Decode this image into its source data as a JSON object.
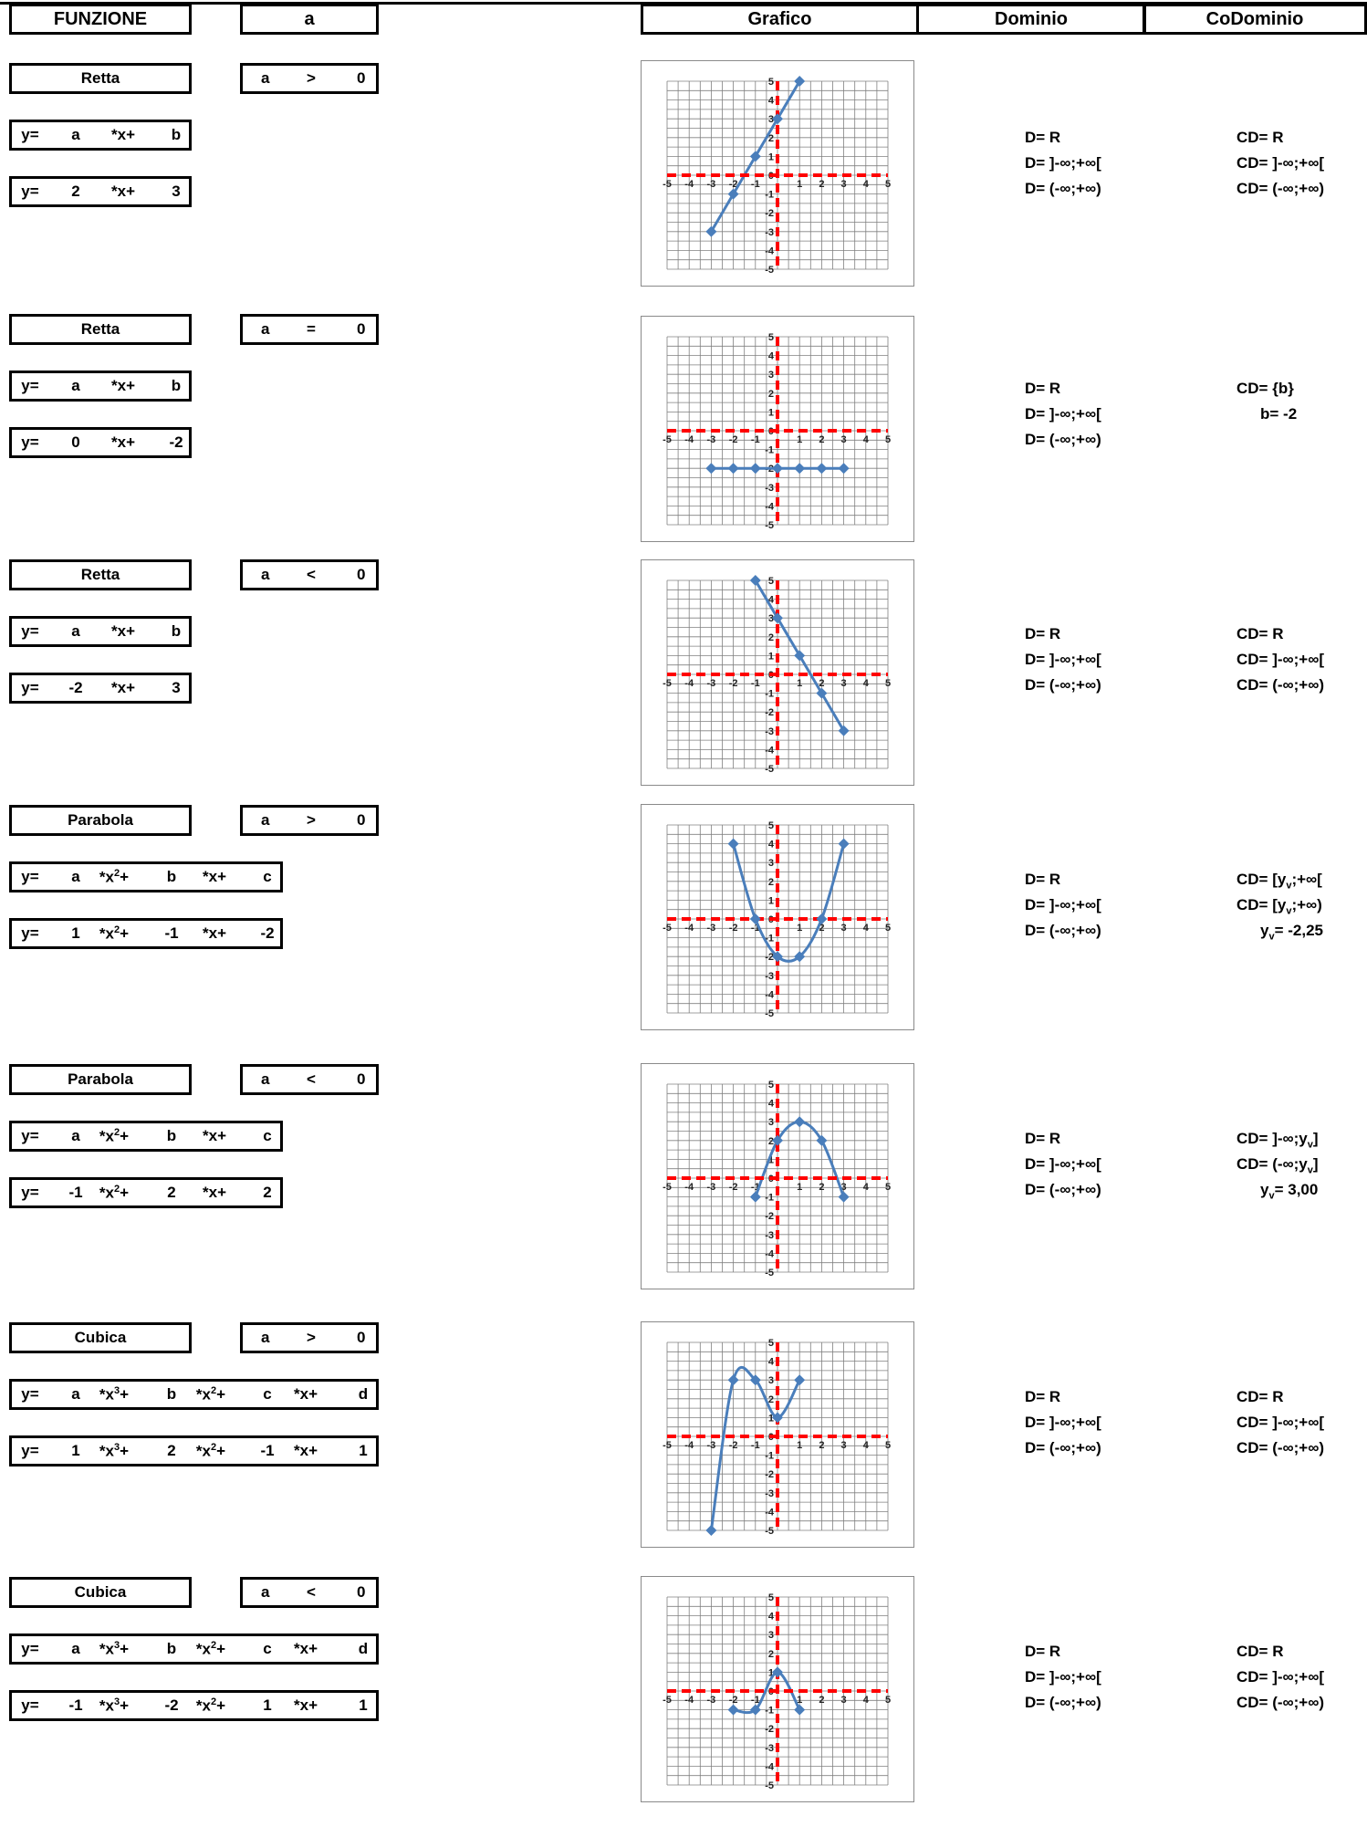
{
  "header": {
    "funzione": "FUNZIONE",
    "a": "a",
    "grafico": "Grafico",
    "dominio": "Dominio",
    "codominio": "CoDominio"
  },
  "sections": [
    {
      "name": "Retta",
      "cond": [
        "a",
        ">",
        "0"
      ],
      "type": "linear",
      "coef": [
        "2",
        "3"
      ],
      "dom": [
        "D= R",
        "D= ]-∞;+∞[",
        "D= (-∞;+∞)"
      ],
      "cod": [
        "CD= R",
        "CD= ]-∞;+∞[",
        "CD= (-∞;+∞)"
      ]
    },
    {
      "name": "Retta",
      "cond": [
        "a",
        "=",
        "0"
      ],
      "type": "linear",
      "coef": [
        "0",
        "-2"
      ],
      "dom": [
        "D= R",
        "D= ]-∞;+∞[",
        "D= (-∞;+∞)"
      ],
      "cod": [
        "CD= {b}",
        "b= -2",
        ""
      ]
    },
    {
      "name": "Retta",
      "cond": [
        "a",
        "<",
        "0"
      ],
      "type": "linear",
      "coef": [
        "-2",
        "3"
      ],
      "dom": [
        "D= R",
        "D= ]-∞;+∞[",
        "D= (-∞;+∞)"
      ],
      "cod": [
        "CD= R",
        "CD= ]-∞;+∞[",
        "CD= (-∞;+∞)"
      ]
    },
    {
      "name": "Parabola",
      "cond": [
        "a",
        ">",
        "0"
      ],
      "type": "quadratic",
      "coef": [
        "1",
        "-1",
        "-2"
      ],
      "dom": [
        "D= R",
        "D= ]-∞;+∞[",
        "D= (-∞;+∞)"
      ],
      "cod": [
        "CD= [yv;+∞[",
        "CD= [yv;+∞)",
        "yv= -2,25"
      ]
    },
    {
      "name": "Parabola",
      "cond": [
        "a",
        "<",
        "0"
      ],
      "type": "quadratic",
      "coef": [
        "-1",
        "2",
        "2"
      ],
      "dom": [
        "D= R",
        "D= ]-∞;+∞[",
        "D= (-∞;+∞)"
      ],
      "cod": [
        "CD= ]-∞;yv]",
        "CD= (-∞;yv]",
        "yv= 3,00"
      ]
    },
    {
      "name": "Cubica",
      "cond": [
        "a",
        ">",
        "0"
      ],
      "type": "cubic",
      "coef": [
        "1",
        "2",
        "-1",
        "1"
      ],
      "dom": [
        "D= R",
        "D= ]-∞;+∞[",
        "D= (-∞;+∞)"
      ],
      "cod": [
        "CD= R",
        "CD= ]-∞;+∞[",
        "CD= (-∞;+∞)"
      ]
    },
    {
      "name": "Cubica",
      "cond": [
        "a",
        "<",
        "0"
      ],
      "type": "cubic",
      "coef": [
        "-1",
        "-2",
        "1",
        "1"
      ],
      "dom": [
        "D= R",
        "D= ]-∞;+∞[",
        "D= (-∞;+∞)"
      ],
      "cod": [
        "CD= R",
        "CD= ]-∞;+∞[",
        "CD= (-∞;+∞)"
      ]
    }
  ],
  "generic": {
    "linear": [
      "y=",
      "a",
      "*x+",
      "b"
    ],
    "quadratic": [
      "y=",
      "a",
      "*x2+",
      "b",
      "*x+",
      "c"
    ],
    "cubic": [
      "y=",
      "a",
      "*x3+",
      "b",
      "*x2+",
      "c",
      "*x+",
      "d"
    ]
  },
  "chart_data": [
    {
      "type": "line",
      "title": "",
      "x": [
        -3,
        -2,
        -1,
        0,
        1
      ],
      "y": [
        -3,
        -1,
        1,
        3,
        5
      ],
      "xlim": [
        -5,
        5
      ],
      "ylim": [
        -5,
        5
      ],
      "grid": true
    },
    {
      "type": "line",
      "title": "",
      "x": [
        -3,
        -2,
        -1,
        0,
        1,
        2,
        3
      ],
      "y": [
        -2,
        -2,
        -2,
        -2,
        -2,
        -2,
        -2
      ],
      "xlim": [
        -5,
        5
      ],
      "ylim": [
        -5,
        5
      ],
      "grid": true
    },
    {
      "type": "line",
      "title": "",
      "x": [
        -1,
        0,
        1,
        2,
        3
      ],
      "y": [
        5,
        3,
        1,
        -1,
        -3
      ],
      "xlim": [
        -5,
        5
      ],
      "ylim": [
        -5,
        5
      ],
      "grid": true
    },
    {
      "type": "line",
      "title": "",
      "x": [
        -2,
        -1,
        0,
        1,
        2,
        3
      ],
      "y": [
        4,
        0,
        -2,
        -2,
        0,
        4
      ],
      "xlim": [
        -5,
        5
      ],
      "ylim": [
        -5,
        5
      ],
      "grid": true
    },
    {
      "type": "line",
      "title": "",
      "x": [
        -1,
        0,
        1,
        2,
        3
      ],
      "y": [
        -1,
        2,
        3,
        2,
        -1
      ],
      "xlim": [
        -5,
        5
      ],
      "ylim": [
        -5,
        5
      ],
      "grid": true
    },
    {
      "type": "line",
      "title": "",
      "x": [
        -3,
        -2,
        -1,
        0,
        1
      ],
      "y": [
        -5,
        3,
        3,
        1,
        3
      ],
      "xlim": [
        -5,
        5
      ],
      "ylim": [
        -5,
        5
      ],
      "grid": true
    },
    {
      "type": "line",
      "title": "",
      "x": [
        -2,
        -1,
        0,
        1
      ],
      "y": [
        -1,
        -1,
        1,
        -1
      ],
      "xlim": [
        -5,
        5
      ],
      "ylim": [
        -5,
        5
      ],
      "grid": true
    }
  ],
  "colors": {
    "series": "#4a7ebb",
    "axes": "#ff0000",
    "grid": "#808080"
  }
}
